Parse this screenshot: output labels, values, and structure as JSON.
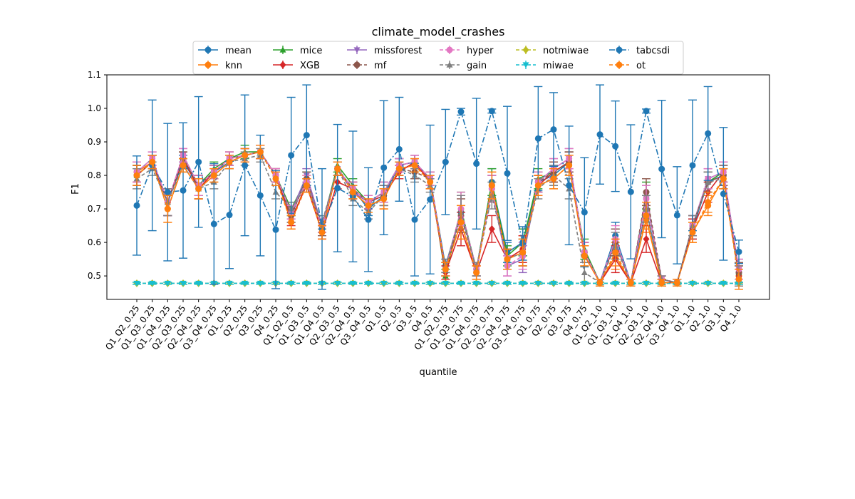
{
  "chart_data": {
    "type": "line",
    "title": "climate_model_crashes",
    "xlabel": "quantile",
    "ylabel": "F1",
    "ylim": [
      0.43,
      1.1
    ],
    "yticks": [
      0.5,
      0.6,
      0.7,
      0.8,
      0.9,
      1.0,
      1.1
    ],
    "legend_placement": "top-center",
    "grid": false,
    "categories": [
      "Q1_Q2_0.25",
      "Q1_Q3_0.25",
      "Q1_Q4_0.25",
      "Q2_Q3_0.25",
      "Q2_Q4_0.25",
      "Q3_Q4_0.25",
      "Q1_0.25",
      "Q2_0.25",
      "Q3_0.25",
      "Q4_0.25",
      "Q1_Q2_0.5",
      "Q1_Q3_0.5",
      "Q1_Q4_0.5",
      "Q2_Q3_0.5",
      "Q2_Q4_0.5",
      "Q3_Q4_0.5",
      "Q1_0.5",
      "Q2_0.5",
      "Q3_0.5",
      "Q4_0.5",
      "Q1_Q2_0.75",
      "Q1_Q3_0.75",
      "Q1_Q4_0.75",
      "Q2_Q3_0.75",
      "Q2_Q4_0.75",
      "Q3_Q4_0.75",
      "Q1_0.75",
      "Q2_0.75",
      "Q3_0.75",
      "Q4_0.75",
      "Q1_Q2_1.0",
      "Q1_Q3_1.0",
      "Q1_Q4_1.0",
      "Q2_Q3_1.0",
      "Q2_Q4_1.0",
      "Q3_Q4_1.0",
      "Q1_1.0",
      "Q2_1.0",
      "Q3_1.0",
      "Q4_1.0"
    ],
    "series": [
      {
        "name": "mean",
        "color": "#1f77b4",
        "dash": "",
        "marker": "circle",
        "values": [
          0.8,
          0.84,
          0.72,
          0.84,
          0.77,
          0.81,
          0.84,
          0.86,
          0.87,
          0.8,
          0.68,
          0.79,
          0.65,
          0.82,
          0.76,
          0.7,
          0.74,
          0.83,
          0.84,
          0.79,
          0.53,
          0.69,
          0.52,
          0.78,
          0.57,
          0.6,
          0.78,
          0.8,
          0.84,
          0.57,
          0.48,
          0.62,
          0.48,
          0.7,
          0.48,
          0.48,
          0.64,
          0.78,
          0.8,
          0.51
        ],
        "err": [
          0.03,
          0.02,
          0.04,
          0.02,
          0.03,
          0.02,
          0.02,
          0.02,
          0.02,
          0.02,
          0.02,
          0.02,
          0.02,
          0.02,
          0.02,
          0.02,
          0.03,
          0.02,
          0.02,
          0.02,
          0.02,
          0.05,
          0.02,
          0.04,
          0.03,
          0.04,
          0.03,
          0.03,
          0.03,
          0.03,
          0.01,
          0.04,
          0.01,
          0.04,
          0.01,
          0.01,
          0.03,
          0.03,
          0.03,
          0.03
        ]
      },
      {
        "name": "knn",
        "color": "#ff7f0e",
        "dash": "",
        "marker": "circle",
        "values": [
          0.81,
          0.84,
          0.7,
          0.83,
          0.76,
          0.8,
          0.84,
          0.86,
          0.87,
          0.8,
          0.66,
          0.78,
          0.63,
          0.82,
          0.75,
          0.71,
          0.73,
          0.82,
          0.83,
          0.79,
          0.52,
          0.66,
          0.51,
          0.77,
          0.55,
          0.58,
          0.77,
          0.79,
          0.83,
          0.56,
          0.48,
          0.56,
          0.48,
          0.67,
          0.48,
          0.48,
          0.63,
          0.71,
          0.79,
          0.5
        ],
        "err": [
          0.03,
          0.02,
          0.04,
          0.02,
          0.03,
          0.02,
          0.02,
          0.02,
          0.02,
          0.02,
          0.02,
          0.02,
          0.02,
          0.02,
          0.02,
          0.02,
          0.03,
          0.02,
          0.02,
          0.02,
          0.02,
          0.05,
          0.02,
          0.04,
          0.03,
          0.04,
          0.03,
          0.03,
          0.03,
          0.03,
          0.01,
          0.04,
          0.01,
          0.04,
          0.01,
          0.01,
          0.03,
          0.03,
          0.03,
          0.03
        ]
      },
      {
        "name": "mice",
        "color": "#2ca02c",
        "dash": "",
        "marker": "triangle",
        "values": [
          0.8,
          0.84,
          0.72,
          0.85,
          0.77,
          0.82,
          0.85,
          0.87,
          0.87,
          0.8,
          0.7,
          0.79,
          0.65,
          0.83,
          0.77,
          0.72,
          0.75,
          0.83,
          0.84,
          0.79,
          0.5,
          0.7,
          0.52,
          0.78,
          0.56,
          0.6,
          0.79,
          0.81,
          0.84,
          0.58,
          0.48,
          0.6,
          0.48,
          0.74,
          0.48,
          0.48,
          0.65,
          0.78,
          0.81,
          0.51
        ],
        "err": [
          0.03,
          0.02,
          0.04,
          0.02,
          0.03,
          0.02,
          0.02,
          0.02,
          0.02,
          0.02,
          0.02,
          0.02,
          0.02,
          0.02,
          0.02,
          0.02,
          0.03,
          0.02,
          0.02,
          0.02,
          0.02,
          0.05,
          0.02,
          0.04,
          0.03,
          0.04,
          0.03,
          0.03,
          0.03,
          0.03,
          0.01,
          0.04,
          0.01,
          0.04,
          0.01,
          0.01,
          0.03,
          0.03,
          0.03,
          0.03
        ]
      },
      {
        "name": "XGB",
        "color": "#d62728",
        "dash": "",
        "marker": "diamond",
        "values": [
          0.8,
          0.84,
          0.72,
          0.85,
          0.76,
          0.81,
          0.85,
          0.86,
          0.87,
          0.8,
          0.67,
          0.77,
          0.63,
          0.78,
          0.76,
          0.72,
          0.74,
          0.81,
          0.84,
          0.78,
          0.51,
          0.64,
          0.51,
          0.64,
          0.55,
          0.58,
          0.77,
          0.81,
          0.84,
          0.57,
          0.48,
          0.55,
          0.48,
          0.61,
          0.48,
          0.48,
          0.64,
          0.75,
          0.81,
          0.5
        ],
        "err": [
          0.03,
          0.02,
          0.04,
          0.02,
          0.03,
          0.02,
          0.02,
          0.02,
          0.02,
          0.02,
          0.02,
          0.02,
          0.02,
          0.02,
          0.02,
          0.02,
          0.03,
          0.02,
          0.02,
          0.02,
          0.02,
          0.05,
          0.02,
          0.04,
          0.03,
          0.04,
          0.03,
          0.03,
          0.03,
          0.03,
          0.01,
          0.04,
          0.01,
          0.04,
          0.01,
          0.01,
          0.03,
          0.03,
          0.03,
          0.03
        ]
      },
      {
        "name": "missforest",
        "color": "#9467bd",
        "dash": "",
        "marker": "tri_down",
        "values": [
          0.81,
          0.85,
          0.72,
          0.86,
          0.77,
          0.81,
          0.85,
          0.86,
          0.87,
          0.8,
          0.69,
          0.8,
          0.65,
          0.82,
          0.75,
          0.72,
          0.75,
          0.83,
          0.84,
          0.79,
          0.52,
          0.69,
          0.52,
          0.76,
          0.53,
          0.55,
          0.78,
          0.82,
          0.85,
          0.57,
          0.48,
          0.6,
          0.48,
          0.73,
          0.49,
          0.48,
          0.65,
          0.79,
          0.81,
          0.52
        ],
        "err": [
          0.03,
          0.02,
          0.04,
          0.02,
          0.03,
          0.02,
          0.02,
          0.02,
          0.02,
          0.02,
          0.02,
          0.02,
          0.02,
          0.02,
          0.02,
          0.02,
          0.03,
          0.02,
          0.02,
          0.02,
          0.02,
          0.05,
          0.02,
          0.04,
          0.03,
          0.04,
          0.03,
          0.03,
          0.03,
          0.03,
          0.01,
          0.04,
          0.01,
          0.04,
          0.01,
          0.01,
          0.03,
          0.03,
          0.03,
          0.03
        ]
      },
      {
        "name": "mf",
        "color": "#8c564b",
        "dash": "5,3",
        "marker": "circle",
        "values": [
          0.8,
          0.84,
          0.72,
          0.85,
          0.77,
          0.81,
          0.85,
          0.86,
          0.87,
          0.8,
          0.68,
          0.79,
          0.64,
          0.82,
          0.76,
          0.72,
          0.74,
          0.82,
          0.81,
          0.79,
          0.52,
          0.68,
          0.52,
          0.76,
          0.55,
          0.57,
          0.78,
          0.81,
          0.84,
          0.57,
          0.48,
          0.6,
          0.48,
          0.75,
          0.49,
          0.48,
          0.65,
          0.78,
          0.8,
          0.51
        ],
        "err": [
          0.03,
          0.02,
          0.04,
          0.02,
          0.03,
          0.02,
          0.02,
          0.02,
          0.02,
          0.02,
          0.02,
          0.02,
          0.02,
          0.02,
          0.02,
          0.02,
          0.03,
          0.02,
          0.02,
          0.02,
          0.02,
          0.05,
          0.02,
          0.04,
          0.03,
          0.04,
          0.03,
          0.03,
          0.03,
          0.03,
          0.01,
          0.04,
          0.01,
          0.04,
          0.01,
          0.01,
          0.03,
          0.03,
          0.03,
          0.03
        ]
      },
      {
        "name": "hyper",
        "color": "#e377c2",
        "dash": "5,3",
        "marker": "circle",
        "values": [
          0.81,
          0.85,
          0.72,
          0.86,
          0.77,
          0.81,
          0.85,
          0.86,
          0.87,
          0.8,
          0.69,
          0.78,
          0.65,
          0.82,
          0.76,
          0.72,
          0.75,
          0.83,
          0.84,
          0.79,
          0.52,
          0.7,
          0.52,
          0.76,
          0.53,
          0.56,
          0.78,
          0.82,
          0.85,
          0.57,
          0.48,
          0.61,
          0.48,
          0.73,
          0.49,
          0.48,
          0.65,
          0.79,
          0.81,
          0.52
        ],
        "err": [
          0.03,
          0.02,
          0.04,
          0.02,
          0.03,
          0.02,
          0.02,
          0.02,
          0.02,
          0.02,
          0.02,
          0.02,
          0.02,
          0.02,
          0.02,
          0.02,
          0.03,
          0.02,
          0.02,
          0.02,
          0.02,
          0.05,
          0.02,
          0.04,
          0.03,
          0.04,
          0.03,
          0.03,
          0.03,
          0.03,
          0.01,
          0.04,
          0.01,
          0.04,
          0.01,
          0.01,
          0.03,
          0.03,
          0.03,
          0.03
        ]
      },
      {
        "name": "gain",
        "color": "#7f7f7f",
        "dash": "5,3",
        "marker": "triangle",
        "values": [
          0.79,
          0.82,
          0.72,
          0.83,
          0.76,
          0.78,
          0.84,
          0.85,
          0.86,
          0.75,
          0.7,
          0.77,
          0.66,
          0.82,
          0.73,
          0.69,
          0.74,
          0.82,
          0.8,
          0.77,
          0.53,
          0.69,
          0.52,
          0.74,
          0.55,
          0.57,
          0.76,
          0.8,
          0.76,
          0.51,
          0.48,
          0.59,
          0.48,
          0.7,
          0.49,
          0.48,
          0.65,
          0.78,
          0.79,
          0.5
        ],
        "err": [
          0.03,
          0.02,
          0.04,
          0.02,
          0.03,
          0.02,
          0.02,
          0.02,
          0.02,
          0.02,
          0.02,
          0.02,
          0.02,
          0.02,
          0.02,
          0.02,
          0.03,
          0.02,
          0.02,
          0.02,
          0.02,
          0.05,
          0.02,
          0.04,
          0.03,
          0.04,
          0.03,
          0.03,
          0.03,
          0.03,
          0.01,
          0.04,
          0.01,
          0.04,
          0.01,
          0.01,
          0.03,
          0.03,
          0.03,
          0.03
        ]
      },
      {
        "name": "notmiwae",
        "color": "#bcbd22",
        "dash": "5,3",
        "marker": "diamond",
        "values": [
          0.478,
          0.478,
          0.478,
          0.478,
          0.478,
          0.478,
          0.478,
          0.478,
          0.478,
          0.478,
          0.478,
          0.478,
          0.478,
          0.478,
          0.478,
          0.478,
          0.478,
          0.478,
          0.478,
          0.478,
          0.478,
          0.478,
          0.478,
          0.478,
          0.478,
          0.478,
          0.478,
          0.478,
          0.478,
          0.478,
          0.478,
          0.478,
          0.478,
          0.478,
          0.478,
          0.478,
          0.478,
          0.478,
          0.478,
          0.478
        ],
        "err": [
          0.003,
          0.003,
          0.003,
          0.003,
          0.003,
          0.003,
          0.003,
          0.003,
          0.003,
          0.003,
          0.003,
          0.003,
          0.003,
          0.003,
          0.003,
          0.003,
          0.003,
          0.003,
          0.003,
          0.003,
          0.003,
          0.003,
          0.003,
          0.003,
          0.003,
          0.003,
          0.003,
          0.003,
          0.003,
          0.003,
          0.003,
          0.003,
          0.003,
          0.003,
          0.003,
          0.003,
          0.003,
          0.003,
          0.003,
          0.003
        ]
      },
      {
        "name": "miwae",
        "color": "#17becf",
        "dash": "5,3",
        "marker": "tri_down",
        "values": [
          0.478,
          0.478,
          0.478,
          0.478,
          0.478,
          0.478,
          0.478,
          0.478,
          0.478,
          0.478,
          0.478,
          0.478,
          0.478,
          0.478,
          0.478,
          0.478,
          0.478,
          0.478,
          0.478,
          0.478,
          0.478,
          0.478,
          0.478,
          0.478,
          0.478,
          0.478,
          0.478,
          0.478,
          0.478,
          0.478,
          0.478,
          0.478,
          0.478,
          0.478,
          0.478,
          0.478,
          0.478,
          0.478,
          0.478,
          0.478
        ],
        "err": [
          0.003,
          0.003,
          0.003,
          0.003,
          0.003,
          0.003,
          0.003,
          0.003,
          0.003,
          0.003,
          0.003,
          0.003,
          0.003,
          0.003,
          0.003,
          0.003,
          0.003,
          0.003,
          0.003,
          0.003,
          0.003,
          0.003,
          0.003,
          0.003,
          0.003,
          0.003,
          0.003,
          0.003,
          0.003,
          0.003,
          0.003,
          0.003,
          0.003,
          0.003,
          0.003,
          0.003,
          0.003,
          0.003,
          0.003,
          0.003
        ]
      },
      {
        "name": "tabcsdi",
        "color": "#1f77b4",
        "dash": "8,3,2,3",
        "marker": "circle",
        "values": [
          0.71,
          0.83,
          0.75,
          0.755,
          0.84,
          0.655,
          0.682,
          0.83,
          0.74,
          0.638,
          0.86,
          0.92,
          0.64,
          0.762,
          0.737,
          0.668,
          0.823,
          0.878,
          0.668,
          0.728,
          0.84,
          0.99,
          0.835,
          0.992,
          0.806,
          0.597,
          0.91,
          0.937,
          0.77,
          0.69,
          0.922,
          0.887,
          0.751,
          0.992,
          0.819,
          0.681,
          0.83,
          0.925,
          0.745,
          0.572
        ],
        "err": [
          0.148,
          0.195,
          0.205,
          0.202,
          0.195,
          0.18,
          0.16,
          0.21,
          0.18,
          0.176,
          0.173,
          0.15,
          0.18,
          0.19,
          0.195,
          0.155,
          0.2,
          0.155,
          0.168,
          0.222,
          0.157,
          0.01,
          0.195,
          0.006,
          0.2,
          0.05,
          0.155,
          0.11,
          0.177,
          0.163,
          0.148,
          0.135,
          0.2,
          0.006,
          0.205,
          0.145,
          0.195,
          0.14,
          0.198,
          0.035
        ]
      },
      {
        "name": "ot",
        "color": "#ff7f0e",
        "dash": "5,3",
        "marker": "circle",
        "values": [
          0.8,
          0.84,
          0.7,
          0.83,
          0.76,
          0.8,
          0.84,
          0.86,
          0.87,
          0.79,
          0.66,
          0.77,
          0.63,
          0.82,
          0.75,
          0.71,
          0.73,
          0.82,
          0.83,
          0.78,
          0.52,
          0.66,
          0.51,
          0.77,
          0.55,
          0.57,
          0.77,
          0.79,
          0.83,
          0.56,
          0.48,
          0.57,
          0.48,
          0.68,
          0.48,
          0.48,
          0.63,
          0.72,
          0.79,
          0.49
        ],
        "err": [
          0.03,
          0.02,
          0.04,
          0.02,
          0.03,
          0.02,
          0.02,
          0.02,
          0.02,
          0.02,
          0.02,
          0.02,
          0.02,
          0.02,
          0.02,
          0.02,
          0.03,
          0.02,
          0.02,
          0.02,
          0.02,
          0.05,
          0.02,
          0.04,
          0.03,
          0.04,
          0.03,
          0.03,
          0.03,
          0.03,
          0.01,
          0.04,
          0.01,
          0.04,
          0.01,
          0.01,
          0.03,
          0.03,
          0.03,
          0.03
        ]
      }
    ]
  }
}
